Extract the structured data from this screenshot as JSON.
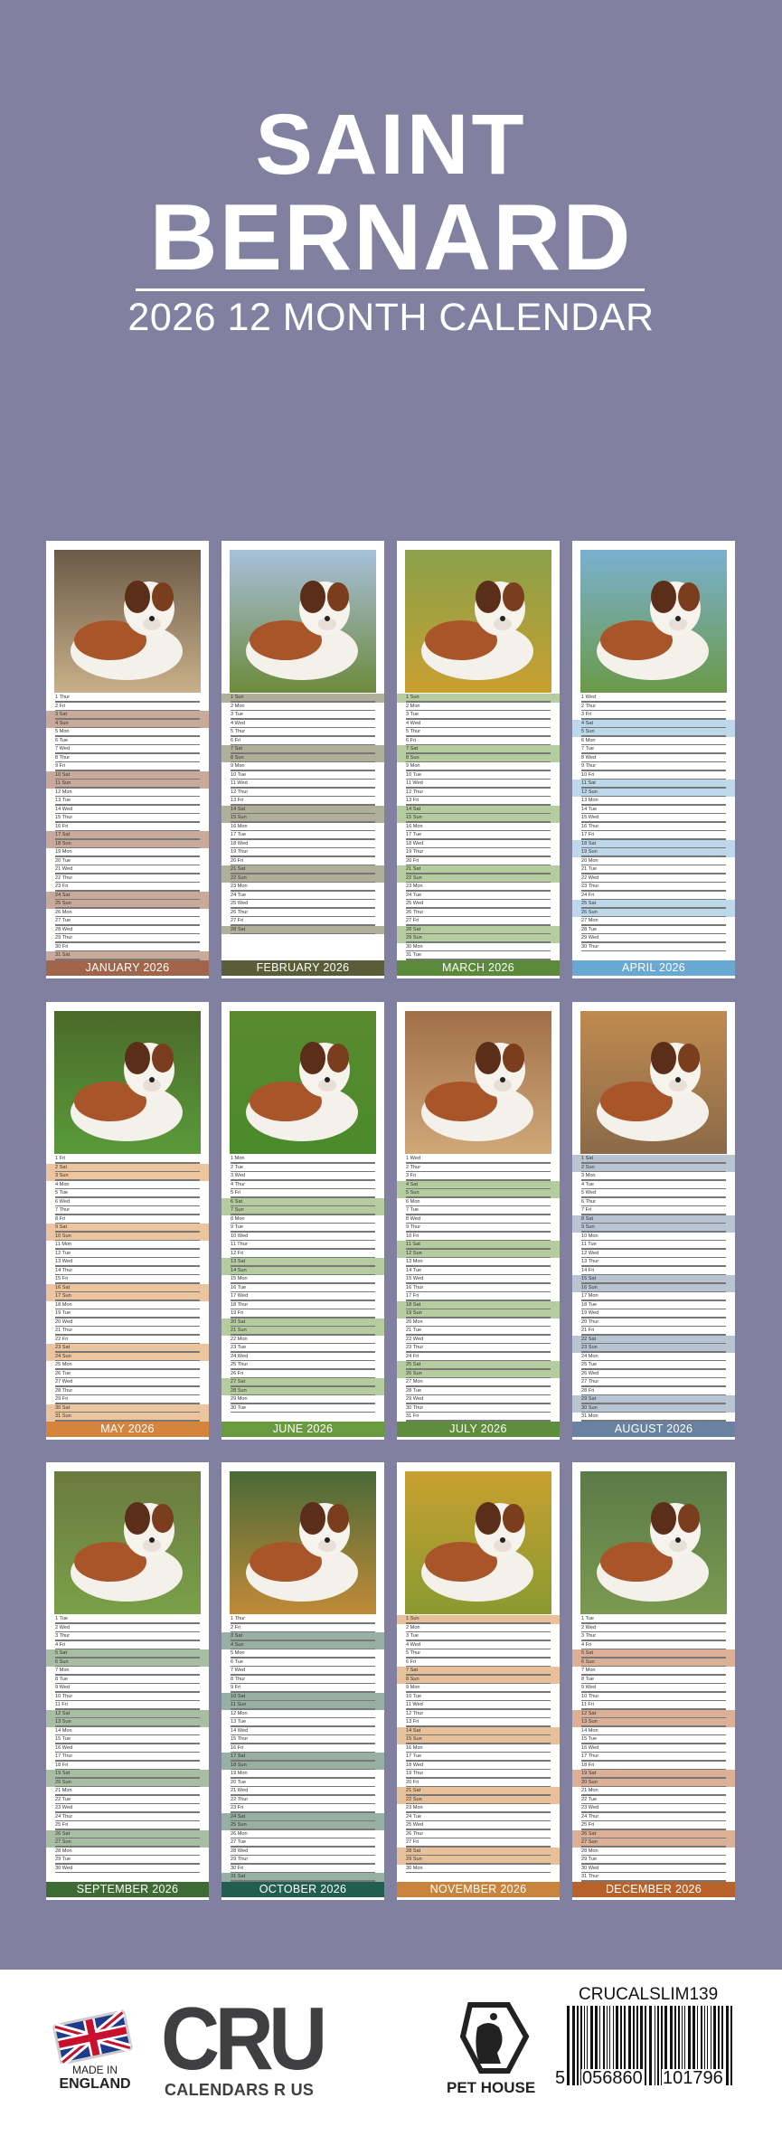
{
  "header": {
    "title_line1": "SAINT",
    "title_line2": "BERNARD",
    "subtitle": "2026 12 MONTH CALENDAR"
  },
  "colors": {
    "background": "#8180a0",
    "footer": "#ffffff"
  },
  "months": [
    {
      "label": "JANUARY 2026",
      "band": "#a0654a",
      "weekend": "#c9aa9a",
      "photo_bg": [
        "#6b5a48",
        "#c9b08a"
      ],
      "days": [
        "1 Thur",
        "2 Fri",
        "3 Sat",
        "4 Sun",
        "5 Mon",
        "6 Tue",
        "7 Wed",
        "8 Thur",
        "9 Fri",
        "10 Sat",
        "11 Sun",
        "12 Mon",
        "13 Tue",
        "14 Wed",
        "15 Thur",
        "16 Fri",
        "17 Sat",
        "18 Sun",
        "19 Mon",
        "20 Tue",
        "21 Wed",
        "22 Thur",
        "23 Fri",
        "24 Sat",
        "25 Sun",
        "26 Mon",
        "27 Tue",
        "28 Wed",
        "29 Thur",
        "30 Fri",
        "31 Sat"
      ]
    },
    {
      "label": "FEBRUARY 2026",
      "band": "#5a5e38",
      "weekend": "#b0b09a",
      "photo_bg": [
        "#a8c0dc",
        "#6d8a3c"
      ],
      "days": [
        "1 Sun",
        "2 Mon",
        "3 Tue",
        "4 Wed",
        "5 Thur",
        "6 Fri",
        "7 Sat",
        "8 Sun",
        "9 Mon",
        "10 Tue",
        "11 Wed",
        "12 Thur",
        "13 Fri",
        "14 Sat",
        "15 Sun",
        "16 Mon",
        "17 Tue",
        "18 Wed",
        "19 Thur",
        "20 Fri",
        "21 Sat",
        "22 Sun",
        "23 Mon",
        "24 Tue",
        "25 Wed",
        "26 Thur",
        "27 Fri",
        "28 Sat"
      ]
    },
    {
      "label": "MARCH 2026",
      "band": "#5a8a3a",
      "weekend": "#b5cc9e",
      "photo_bg": [
        "#8aa04a",
        "#c8a030"
      ],
      "days": [
        "1 Sun",
        "2 Mon",
        "3 Tue",
        "4 Wed",
        "5 Thur",
        "6 Fri",
        "7 Sat",
        "8 Sun",
        "9 Mon",
        "10 Tue",
        "11 Wed",
        "12 Thur",
        "13 Fri",
        "14 Sat",
        "15 Sun",
        "16 Mon",
        "17 Tue",
        "18 Wed",
        "19 Thur",
        "20 Fri",
        "21 Sat",
        "22 Sun",
        "23 Mon",
        "24 Tue",
        "25 Wed",
        "26 Thur",
        "27 Fri",
        "28 Sat",
        "29 Sun",
        "30 Mon",
        "31 Tue"
      ]
    },
    {
      "label": "APRIL 2026",
      "band": "#6aa8d4",
      "weekend": "#bcd8ea",
      "photo_bg": [
        "#7ab0d0",
        "#6a9a48"
      ],
      "days": [
        "1 Wed",
        "2 Thur",
        "3 Fri",
        "4 Sat",
        "5 Sun",
        "6 Mon",
        "7 Tue",
        "8 Wed",
        "9 Thur",
        "10 Fri",
        "11 Sat",
        "12 Sun",
        "13 Mon",
        "14 Tue",
        "15 Wed",
        "16 Thur",
        "17 Fri",
        "18 Sat",
        "19 Sun",
        "20 Mon",
        "21 Tue",
        "22 Wed",
        "23 Thur",
        "24 Fri",
        "25 Sat",
        "26 Sun",
        "27 Mon",
        "28 Tue",
        "29 Wed",
        "30 Thur"
      ]
    },
    {
      "label": "MAY 2026",
      "band": "#d4843c",
      "weekend": "#ecc59e",
      "photo_bg": [
        "#4a6a2a",
        "#5a9a3a"
      ],
      "days": [
        "1 Fri",
        "2 Sat",
        "3 Sun",
        "4 Mon",
        "5 Tue",
        "6 Wed",
        "7 Thur",
        "8 Fri",
        "9 Sat",
        "10 Sun",
        "11 Mon",
        "12 Tue",
        "13 Wed",
        "14 Thur",
        "15 Fri",
        "16 Sat",
        "17 Sun",
        "18 Mon",
        "19 Tue",
        "20 Wed",
        "21 Thur",
        "22 Fri",
        "23 Sat",
        "24 Sun",
        "25 Mon",
        "26 Tue",
        "27 Wed",
        "28 Thur",
        "29 Fri",
        "30 Sat",
        "31 Sun"
      ]
    },
    {
      "label": "JUNE 2026",
      "band": "#6a9a3e",
      "weekend": "#b5cc9e",
      "photo_bg": [
        "#5a8a30",
        "#4a8a2a"
      ],
      "days": [
        "1 Mon",
        "2 Tue",
        "3 Wed",
        "4 Thur",
        "5 Fri",
        "6 Sat",
        "7 Sun",
        "8 Mon",
        "9 Tue",
        "10 Wed",
        "11 Thur",
        "12 Fri",
        "13 Sat",
        "14 Sun",
        "15 Mon",
        "16 Tue",
        "17 Wed",
        "18 Thur",
        "19 Fri",
        "20 Sat",
        "21 Sun",
        "22 Mon",
        "23 Tue",
        "24 Wed",
        "25 Thur",
        "26 Fri",
        "27 Sat",
        "28 Sun",
        "29 Mon",
        "30 Tue"
      ]
    },
    {
      "label": "JULY 2026",
      "band": "#5e8e3c",
      "weekend": "#b5cc9e",
      "photo_bg": [
        "#a07048",
        "#d0a878"
      ],
      "days": [
        "1 Wed",
        "2 Thur",
        "3 Fri",
        "4 Sat",
        "5 Sun",
        "6 Mon",
        "7 Tue",
        "8 Wed",
        "9 Thur",
        "10 Fri",
        "11 Sat",
        "12 Sun",
        "13 Mon",
        "14 Tue",
        "15 Wed",
        "16 Thur",
        "17 Fri",
        "18 Sat",
        "19 Sun",
        "20 Mon",
        "21 Tue",
        "22 Wed",
        "23 Thur",
        "24 Fri",
        "25 Sat",
        "26 Sun",
        "27 Mon",
        "28 Tue",
        "29 Wed",
        "30 Thur",
        "31 Fri"
      ]
    },
    {
      "label": "AUGUST 2026",
      "band": "#6a82a2",
      "weekend": "#b9c4d2",
      "photo_bg": [
        "#c08a50",
        "#8a6a48"
      ],
      "days": [
        "1 Sat",
        "2 Sun",
        "3 Mon",
        "4 Tue",
        "5 Wed",
        "6 Thur",
        "7 Fri",
        "8 Sat",
        "9 Sun",
        "10 Mon",
        "11 Tue",
        "12 Wed",
        "13 Thur",
        "14 Fri",
        "15 Sat",
        "16 Sun",
        "17 Mon",
        "18 Tue",
        "19 Wed",
        "20 Thur",
        "21 Fri",
        "22 Sat",
        "23 Sun",
        "24 Mon",
        "25 Tue",
        "26 Wed",
        "27 Thur",
        "28 Fri",
        "29 Sat",
        "30 Sun",
        "31 Mon"
      ]
    },
    {
      "label": "SEPTEMBER 2026",
      "band": "#3e6a34",
      "weekend": "#a8bea2",
      "photo_bg": [
        "#6a7a40",
        "#7aa048"
      ],
      "days": [
        "1 Tue",
        "2 Wed",
        "3 Thur",
        "4 Fri",
        "5 Sat",
        "6 Sun",
        "7 Mon",
        "8 Tue",
        "9 Wed",
        "10 Thur",
        "11 Fri",
        "12 Sat",
        "13 Sun",
        "14 Mon",
        "15 Tue",
        "16 Wed",
        "17 Thur",
        "18 Fri",
        "19 Sat",
        "20 Sun",
        "21 Mon",
        "22 Tue",
        "23 Wed",
        "24 Thur",
        "25 Fri",
        "26 Sat",
        "27 Sun",
        "28 Mon",
        "29 Tue",
        "30 Wed"
      ]
    },
    {
      "label": "OCTOBER 2026",
      "band": "#225e50",
      "weekend": "#98b0a4",
      "photo_bg": [
        "#4a6a38",
        "#c08a38"
      ],
      "days": [
        "1 Thur",
        "2 Fri",
        "3 Sat",
        "4 Sun",
        "5 Mon",
        "6 Tue",
        "7 Wed",
        "8 Thur",
        "9 Fri",
        "10 Sat",
        "11 Sun",
        "12 Mon",
        "13 Tue",
        "14 Wed",
        "15 Thur",
        "16 Fri",
        "17 Sat",
        "18 Sun",
        "19 Mon",
        "20 Tue",
        "21 Wed",
        "22 Thur",
        "23 Fri",
        "24 Sat",
        "25 Sun",
        "26 Mon",
        "27 Tue",
        "28 Wed",
        "29 Thur",
        "30 Fri",
        "31 Sat"
      ]
    },
    {
      "label": "NOVEMBER 2026",
      "band": "#c8843c",
      "weekend": "#e8c09a",
      "photo_bg": [
        "#c8a030",
        "#8a9a30"
      ],
      "days": [
        "1 Sun",
        "2 Mon",
        "3 Tue",
        "4 Wed",
        "5 Thur",
        "6 Fri",
        "7 Sat",
        "8 Sun",
        "9 Mon",
        "10 Tue",
        "11 Wed",
        "12 Thur",
        "13 Fri",
        "14 Sat",
        "15 Sun",
        "16 Mon",
        "17 Tue",
        "18 Wed",
        "19 Thur",
        "20 Fri",
        "21 Sat",
        "22 Sun",
        "23 Mon",
        "24 Tue",
        "25 Wed",
        "26 Thur",
        "27 Fri",
        "28 Sat",
        "29 Sun",
        "30 Mon"
      ]
    },
    {
      "label": "DECEMBER 2026",
      "band": "#b8622a",
      "weekend": "#dcb096",
      "photo_bg": [
        "#5a7a48",
        "#7a9a50"
      ],
      "days": [
        "1 Tue",
        "2 Wed",
        "3 Thur",
        "4 Fri",
        "5 Sat",
        "6 Sun",
        "7 Mon",
        "8 Tue",
        "9 Wed",
        "10 Thur",
        "11 Fri",
        "12 Sat",
        "13 Sun",
        "14 Mon",
        "15 Tue",
        "16 Wed",
        "17 Thur",
        "18 Fri",
        "19 Sat",
        "20 Sun",
        "21 Mon",
        "22 Tue",
        "23 Wed",
        "24 Thur",
        "25 Fri",
        "26 Sat",
        "27 Sun",
        "28 Mon",
        "29 Tue",
        "30 Wed",
        "31 Thur"
      ]
    }
  ],
  "footer": {
    "made_in": "MADE IN",
    "england": "ENGLAND",
    "cru_logo": "CRU",
    "cru_tagline": "CALENDARS R US",
    "pet_house_logo": "PET HOUSE",
    "sku": "CRUCALSLIM139",
    "barcode_digits": [
      "5",
      "056860",
      "101796"
    ]
  }
}
